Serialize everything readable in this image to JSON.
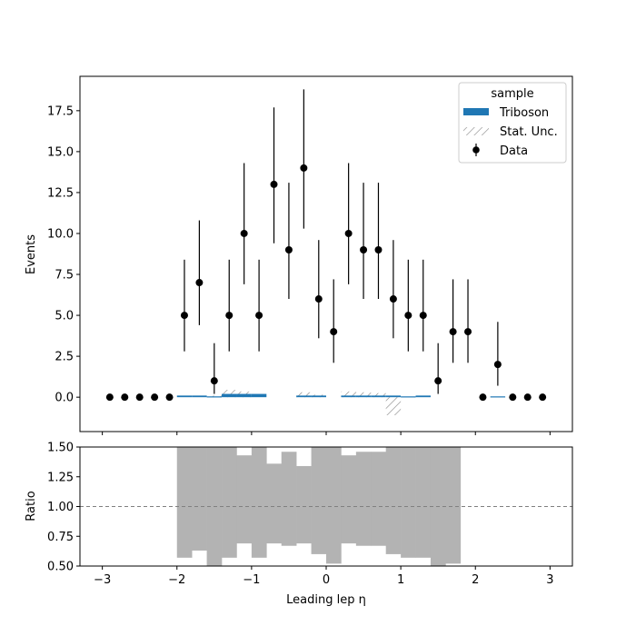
{
  "chart_data": [
    {
      "type": "bar",
      "panel": "main",
      "ylabel": "Events",
      "xlim": [
        -3.3,
        3.3
      ],
      "ylim": [
        -2.1,
        19.6
      ],
      "yticks": [
        0,
        2.5,
        5,
        7.5,
        10,
        12.5,
        15,
        17.5
      ],
      "ytick_labels": [
        "0.0",
        "2.5",
        "5.0",
        "7.5",
        "10.0",
        "12.5",
        "15.0",
        "17.5"
      ],
      "bin_edges": [
        -3,
        -2.8,
        -2.6,
        -2.4,
        -2.2,
        -2,
        -1.8,
        -1.6,
        -1.4,
        -1.2,
        -1,
        -0.8,
        -0.6,
        -0.4,
        -0.2,
        0,
        0.2,
        0.4,
        0.6,
        0.8,
        1,
        1.2,
        1.4,
        1.6,
        1.8,
        2,
        2.2,
        2.4,
        2.6,
        2.8,
        3
      ],
      "series": [
        {
          "name": "Triboson",
          "color": "#1f77b4",
          "values": [
            0,
            0,
            0,
            0,
            0,
            0.1,
            0.1,
            0.05,
            0.2,
            0.2,
            0.2,
            0,
            0,
            0.1,
            0.1,
            0,
            0.1,
            0.1,
            0.1,
            0.1,
            0.05,
            0.1,
            0,
            0,
            0,
            0,
            0.05,
            0,
            0,
            0
          ]
        },
        {
          "name": "Data",
          "color": "#000000",
          "x": [
            -2.9,
            -2.7,
            -2.5,
            -2.3,
            -2.1,
            -1.9,
            -1.7,
            -1.5,
            -1.3,
            -1.1,
            -0.9,
            -0.7,
            -0.5,
            -0.3,
            -0.1,
            0.1,
            0.3,
            0.5,
            0.7,
            0.9,
            1.1,
            1.3,
            1.5,
            1.7,
            1.9,
            2.1,
            2.3,
            2.5,
            2.7,
            2.9
          ],
          "values": [
            0,
            0,
            0,
            0,
            0,
            5,
            7,
            1,
            5,
            10,
            5,
            13,
            9,
            14,
            6,
            4,
            10,
            9,
            9,
            6,
            5,
            5,
            1,
            4,
            4,
            0,
            2,
            0,
            0,
            0
          ],
          "err_low": [
            0,
            0,
            0,
            0,
            0,
            2.2,
            2.6,
            0.8,
            2.2,
            3.1,
            2.2,
            3.6,
            3.0,
            3.7,
            2.4,
            1.9,
            3.1,
            3.0,
            3.0,
            2.4,
            2.2,
            2.2,
            0.8,
            1.9,
            1.9,
            0,
            1.3,
            0,
            0,
            0
          ],
          "err_high": [
            0,
            0,
            0,
            0,
            0,
            3.4,
            3.8,
            2.3,
            3.4,
            4.3,
            3.4,
            4.7,
            4.1,
            4.8,
            3.6,
            3.2,
            4.3,
            4.1,
            4.1,
            3.6,
            3.4,
            3.4,
            2.3,
            3.2,
            3.2,
            0,
            2.6,
            0,
            0,
            0
          ]
        },
        {
          "name": "Stat. Unc.",
          "color": "#808080",
          "hatch": "////",
          "bins": [
            {
              "x0": -1.6,
              "x1": -1.4,
              "low": 0.0,
              "high": 0.1
            },
            {
              "x0": -1.4,
              "x1": -1.2,
              "low": 0.0,
              "high": 0.45
            },
            {
              "x0": -1.2,
              "x1": -1.0,
              "low": 0.0,
              "high": 0.35
            },
            {
              "x0": -0.4,
              "x1": -0.2,
              "low": 0.0,
              "high": 0.3
            },
            {
              "x0": -0.2,
              "x1": 0.0,
              "low": 0.0,
              "high": 0.15
            },
            {
              "x0": 0.2,
              "x1": 0.4,
              "low": 0.0,
              "high": 0.35
            },
            {
              "x0": 0.4,
              "x1": 0.6,
              "low": 0.0,
              "high": 0.3
            },
            {
              "x0": 0.6,
              "x1": 0.8,
              "low": 0.0,
              "high": 0.25
            },
            {
              "x0": 0.8,
              "x1": 1.0,
              "low": -1.1,
              "high": 0.0
            }
          ]
        }
      ],
      "legend": {
        "title": "sample",
        "placement": "upper right",
        "entries": [
          "Triboson",
          "Stat. Unc.",
          "Data"
        ]
      }
    },
    {
      "type": "bar",
      "panel": "ratio",
      "xlabel": "Leading lep η",
      "ylabel": "Ratio",
      "xlim": [
        -3.3,
        3.3
      ],
      "ylim": [
        0.5,
        1.5
      ],
      "xticks": [
        -3,
        -2,
        -1,
        0,
        1,
        2,
        3
      ],
      "xtick_labels": [
        "−3",
        "−2",
        "−1",
        "0",
        "1",
        "2",
        "3"
      ],
      "yticks": [
        0.5,
        0.75,
        1.0,
        1.25,
        1.5
      ],
      "ytick_labels": [
        "0.50",
        "0.75",
        "1.00",
        "1.25",
        "1.50"
      ],
      "reference_line": 1.0,
      "band_color": "#b3b3b3",
      "bins": [
        {
          "x0": -2.0,
          "x1": -1.8,
          "low": 0.57,
          "high": 1.5
        },
        {
          "x0": -1.8,
          "x1": -1.6,
          "low": 0.63,
          "high": 1.5
        },
        {
          "x0": -1.6,
          "x1": -1.4,
          "low": 0.5,
          "high": 1.5
        },
        {
          "x0": -1.4,
          "x1": -1.2,
          "low": 0.57,
          "high": 1.5
        },
        {
          "x0": -1.2,
          "x1": -1.0,
          "low": 0.69,
          "high": 1.43
        },
        {
          "x0": -1.0,
          "x1": -0.8,
          "low": 0.57,
          "high": 1.5
        },
        {
          "x0": -0.8,
          "x1": -0.6,
          "low": 0.69,
          "high": 1.36
        },
        {
          "x0": -0.6,
          "x1": -0.4,
          "low": 0.67,
          "high": 1.46
        },
        {
          "x0": -0.4,
          "x1": -0.2,
          "low": 0.69,
          "high": 1.34
        },
        {
          "x0": -0.2,
          "x1": 0.0,
          "low": 0.6,
          "high": 1.5
        },
        {
          "x0": 0.0,
          "x1": 0.2,
          "low": 0.52,
          "high": 1.5
        },
        {
          "x0": 0.2,
          "x1": 0.4,
          "low": 0.69,
          "high": 1.43
        },
        {
          "x0": 0.4,
          "x1": 0.6,
          "low": 0.67,
          "high": 1.46
        },
        {
          "x0": 0.6,
          "x1": 0.8,
          "low": 0.67,
          "high": 1.46
        },
        {
          "x0": 0.8,
          "x1": 1.0,
          "low": 0.6,
          "high": 1.5
        },
        {
          "x0": 1.0,
          "x1": 1.2,
          "low": 0.57,
          "high": 1.5
        },
        {
          "x0": 1.2,
          "x1": 1.4,
          "low": 0.57,
          "high": 1.5
        },
        {
          "x0": 1.4,
          "x1": 1.6,
          "low": 0.5,
          "high": 1.5
        },
        {
          "x0": 1.6,
          "x1": 1.8,
          "low": 0.52,
          "high": 1.5
        }
      ]
    }
  ]
}
